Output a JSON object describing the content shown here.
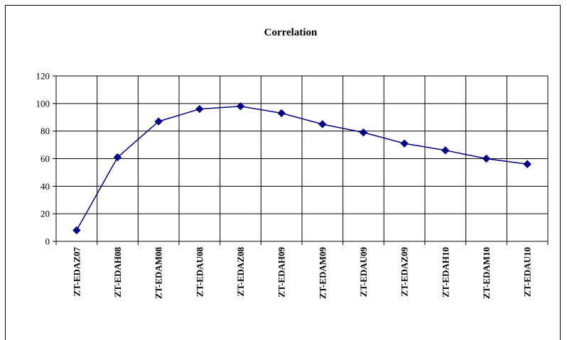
{
  "chart_data": {
    "type": "line",
    "title": "Correlation",
    "xlabel": "",
    "ylabel": "",
    "categories": [
      "ZT-EDAZ07",
      "ZT-EDAH08",
      "ZT-EDAM08",
      "ZT-EDAU08",
      "ZT-EDAZ08",
      "ZT-EDAH09",
      "ZT-EDAM09",
      "ZT-EDAU09",
      "ZT-EDAZ09",
      "ZT-EDAH10",
      "ZT-EDAM10",
      "ZT-EDAU10"
    ],
    "values": [
      8,
      61,
      87,
      96,
      98,
      93,
      85,
      79,
      71,
      66,
      60,
      56
    ],
    "ylim": [
      0,
      120
    ],
    "yticks": [
      0,
      20,
      40,
      60,
      80,
      100,
      120
    ],
    "grid": true,
    "legend": "none",
    "line_color": "#000080",
    "marker": "diamond"
  }
}
